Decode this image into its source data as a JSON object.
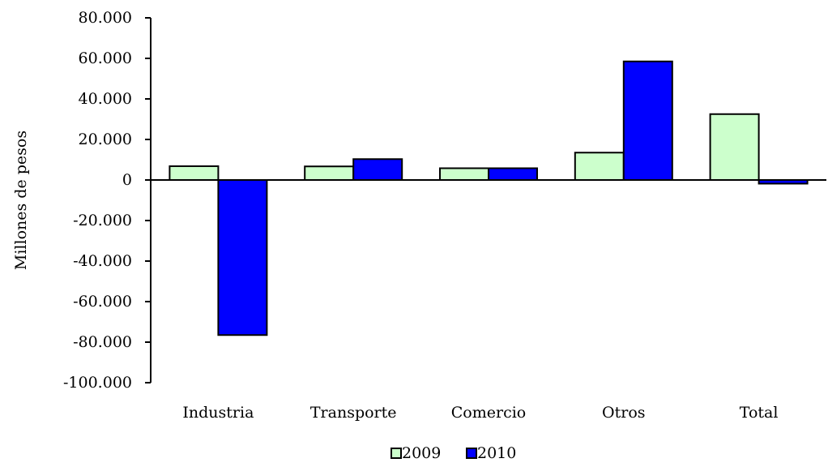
{
  "chart_data": {
    "type": "bar",
    "title": "",
    "xlabel": "",
    "ylabel": "Millones de pesos",
    "ylim": [
      -100000,
      80000
    ],
    "yticks": [
      80000,
      60000,
      40000,
      20000,
      0,
      -20000,
      -40000,
      -60000,
      -80000,
      -100000
    ],
    "ytick_labels": [
      "80.000",
      "60.000",
      "40.000",
      "20.000",
      "0",
      "-20.000",
      "-40.000",
      "-60.000",
      "-80.000",
      "-100.000"
    ],
    "categories": [
      "Industria",
      "Transporte",
      "Comercio",
      "Otros",
      "Total"
    ],
    "series": [
      {
        "name": "2009",
        "values": [
          6800,
          6700,
          5800,
          13500,
          32500
        ],
        "color": "#ccffcc"
      },
      {
        "name": "2010",
        "values": [
          -76500,
          10300,
          5800,
          58500,
          -1800
        ],
        "color": "#0000ff"
      }
    ],
    "grid": false,
    "legend_position": "bottom-center"
  }
}
